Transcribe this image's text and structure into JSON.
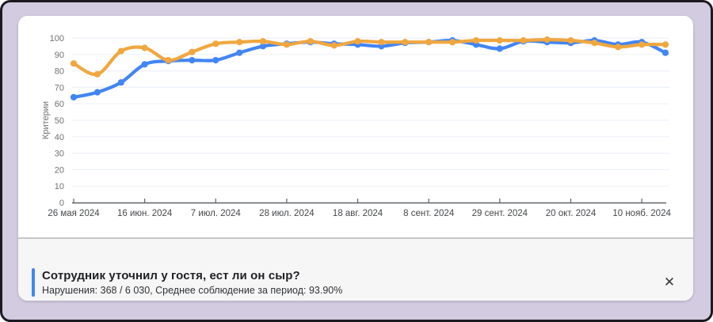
{
  "window": {
    "background_color": "#d3cbdf",
    "card_color": "#ffffff"
  },
  "chart_data": {
    "type": "line",
    "title": "",
    "ylabel": "Критерии",
    "xlabel": "",
    "ylim": [
      0,
      100
    ],
    "y_ticks": [
      0,
      10,
      20,
      30,
      40,
      50,
      60,
      70,
      80,
      90,
      100
    ],
    "x_tick_labels": [
      "26 мая 2024",
      "16 июн. 2024",
      "7 июл. 2024",
      "28 июл. 2024",
      "18 авг. 2024",
      "8 сент. 2024",
      "29 сент. 2024",
      "20 окт. 2024",
      "10 нояб. 2024"
    ],
    "points_per_tick": 3,
    "grid": true,
    "legend": "none",
    "axis_color": "#5f6368",
    "grid_color": "#edf0f8",
    "tick_label_color": "#45474a",
    "y_label_color": "#6f7175",
    "series": [
      {
        "name": "blue-series",
        "color": "#4285f4",
        "values": [
          64,
          67,
          73,
          84,
          86,
          86.5,
          86.5,
          91,
          95,
          96.5,
          97.5,
          96.5,
          96,
          95,
          97,
          97.5,
          98.5,
          96,
          93.5,
          98,
          97.5,
          97,
          98.5,
          96,
          97.5,
          91
        ]
      },
      {
        "name": "orange-series",
        "color": "#f0a73f",
        "values": [
          84.5,
          78,
          92,
          94,
          86.5,
          91.5,
          96.5,
          97.5,
          98,
          96,
          98,
          95.5,
          98,
          97.5,
          97.5,
          97.5,
          97.5,
          98.5,
          98.5,
          98.5,
          99,
          98.5,
          97,
          94.5,
          96,
          96
        ]
      }
    ]
  },
  "footer": {
    "title": "Сотрудник уточнил у гостя, ест ли он сыр?",
    "subtitle": "Нарушения: 368 / 6 030, Среднее соблюдение за период: 93.90%",
    "accent_color": "#4285f4",
    "close_icon": "✕"
  }
}
